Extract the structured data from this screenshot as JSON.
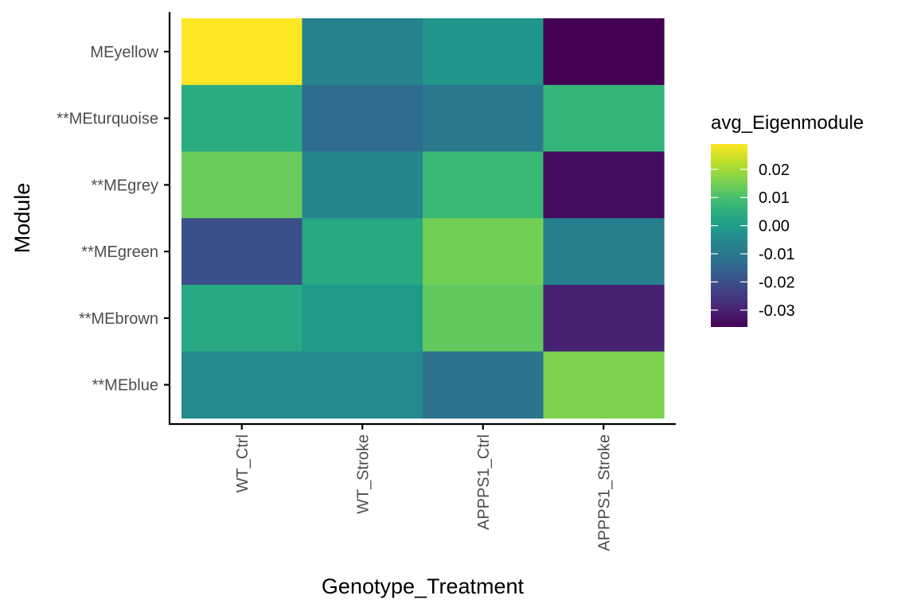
{
  "chart_data": {
    "type": "heatmap",
    "xlabel": "Genotype_Treatment",
    "ylabel": "Module",
    "x_categories": [
      "WT_Ctrl",
      "WT_Stroke",
      "APPPS1_Ctrl",
      "APPPS1_Stroke"
    ],
    "y_categories": [
      "MEyellow",
      "**MEturquoise",
      "**MEgrey",
      "**MEgreen",
      "**MEbrown",
      "**MEblue"
    ],
    "values": [
      [
        0.029,
        -0.007,
        -0.002,
        -0.036
      ],
      [
        0.004,
        -0.013,
        -0.01,
        0.007
      ],
      [
        0.014,
        -0.006,
        0.008,
        -0.034
      ],
      [
        -0.02,
        0.003,
        0.015,
        -0.008
      ],
      [
        0.003,
        -0.001,
        0.013,
        -0.03
      ],
      [
        -0.005,
        -0.005,
        -0.011,
        0.016
      ]
    ],
    "legend": {
      "title": "avg_Eigenmodule",
      "position": "right",
      "ticks": [
        0.02,
        0.01,
        0.0,
        -0.01,
        -0.02,
        -0.03
      ],
      "tick_labels": [
        "0.02",
        "0.01",
        "0.00",
        "-0.01",
        "-0.02",
        "-0.03"
      ],
      "range": [
        -0.036,
        0.029
      ],
      "colormap": "viridis"
    },
    "grid": false
  },
  "colors": {
    "viridis": [
      "#440154",
      "#482878",
      "#3e4989",
      "#31688e",
      "#26828e",
      "#1f9e89",
      "#35b779",
      "#6ece58",
      "#b5de2b",
      "#fde725"
    ],
    "axis_line": "#000000",
    "tick_text": "#4d4d4d"
  }
}
